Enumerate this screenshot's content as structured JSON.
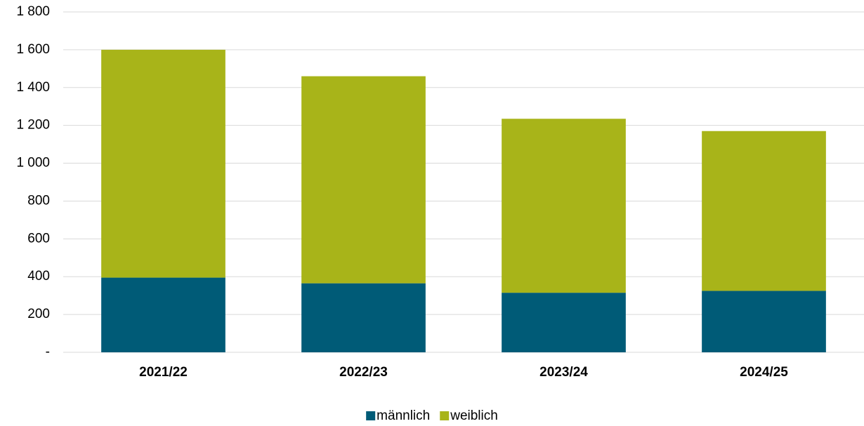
{
  "chart_data": {
    "type": "stacked_bar",
    "categories": [
      "2021/22",
      "2022/23",
      "2023/24",
      "2024/25"
    ],
    "series": [
      {
        "name": "männlich",
        "color": "#005b77",
        "values": [
          395,
          365,
          315,
          325
        ]
      },
      {
        "name": "weiblich",
        "color": "#a8b419",
        "values": [
          1205,
          1095,
          920,
          845
        ]
      }
    ],
    "ylim": [
      0,
      1800
    ],
    "yticks": [
      {
        "value": 0,
        "label": "-"
      },
      200,
      400,
      600,
      800,
      {
        "value": 1000,
        "label": "1 000"
      },
      {
        "value": 1200,
        "label": "1 200"
      },
      {
        "value": 1400,
        "label": "1 400"
      },
      {
        "value": 1600,
        "label": "1 600"
      },
      {
        "value": 1800,
        "label": "1 800"
      }
    ],
    "grid": true,
    "legend": "bottom"
  }
}
